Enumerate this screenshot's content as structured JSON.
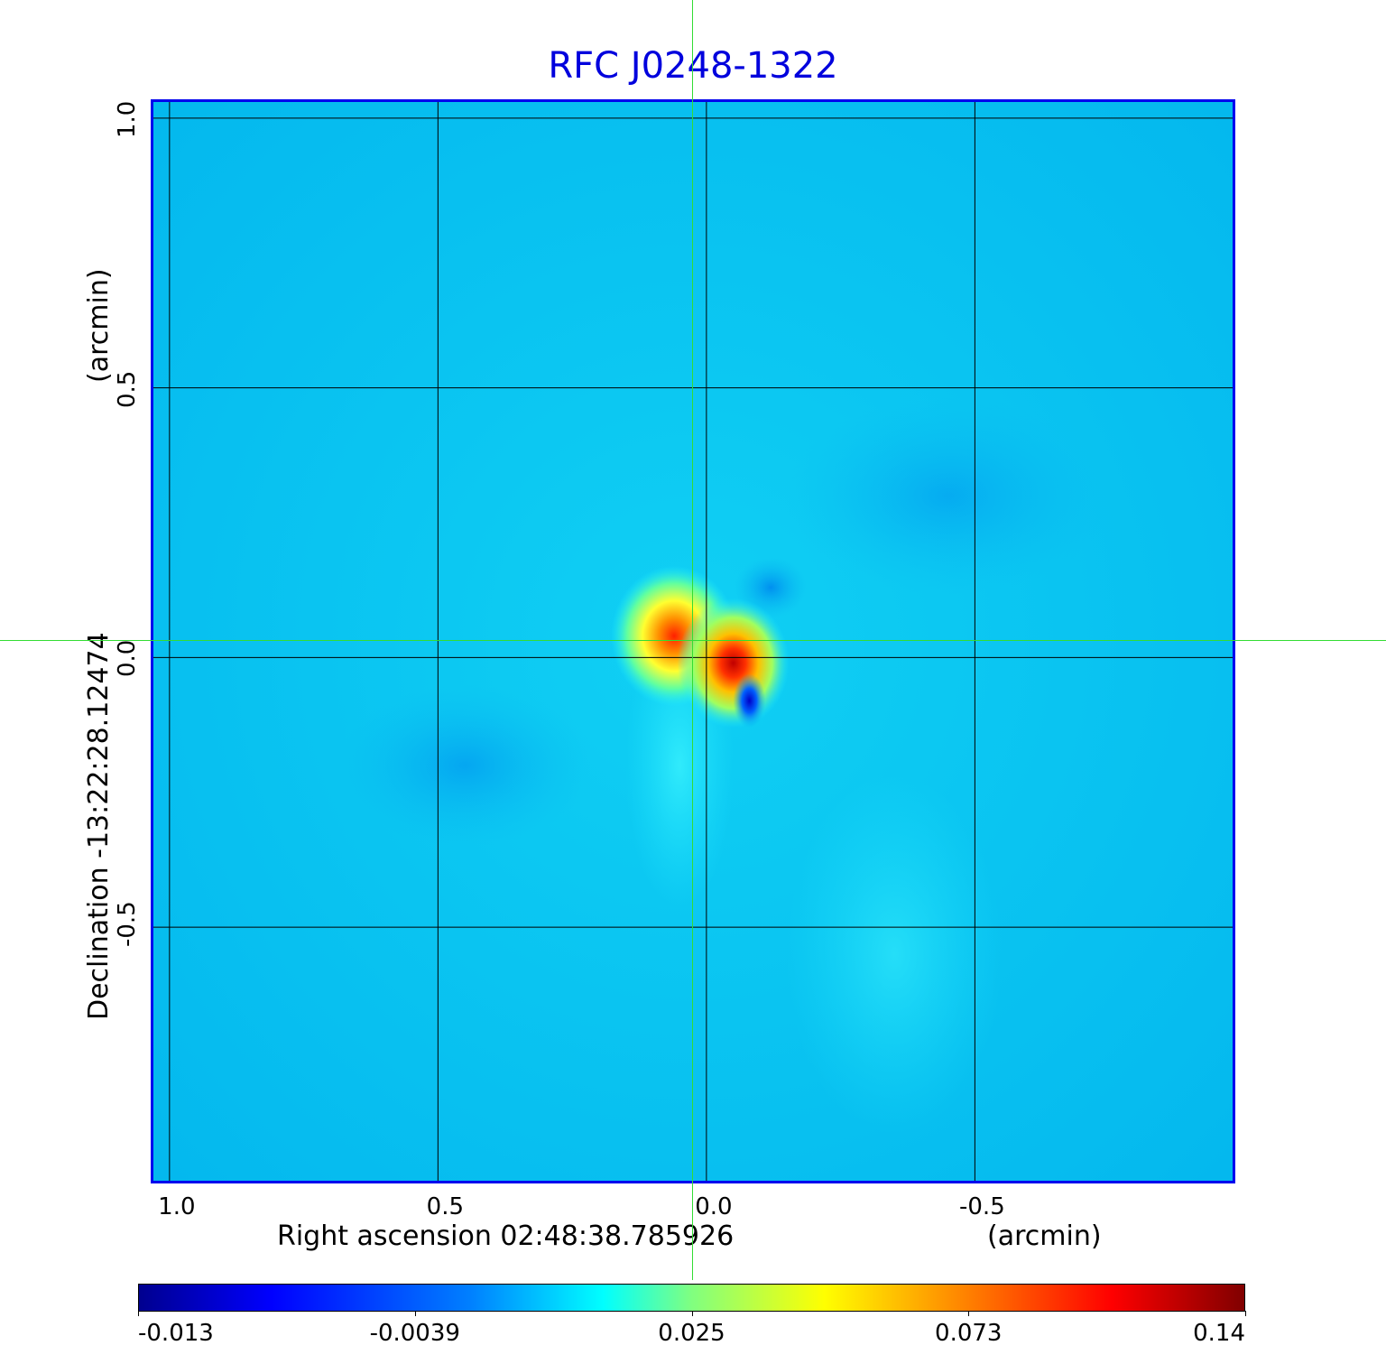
{
  "chart_data": {
    "type": "heatmap",
    "title": "RFC J0248-1322",
    "xlabel": "Right ascension  02:48:38.785926",
    "xlabel_unit": "(arcmin)",
    "ylabel": "Declination  -13:22:28.12474",
    "ylabel_unit": "(arcmin)",
    "x_ticks": [
      "1.0",
      "0.5",
      "0.0",
      "-0.5"
    ],
    "y_ticks": [
      "1.0",
      "0.5",
      "0.0",
      "-0.5"
    ],
    "x_tick_values": [
      1.0,
      0.5,
      0.0,
      -0.5
    ],
    "y_tick_values": [
      1.0,
      0.5,
      0.0,
      -0.5
    ],
    "xlim": [
      1.03,
      -0.98
    ],
    "ylim": [
      -0.97,
      1.03
    ],
    "grid": true,
    "colormap": "jet",
    "colorbar_ticks": [
      "-0.013",
      "-0.0039",
      "0.025",
      "0.073",
      "0.14"
    ],
    "colorbar_range": [
      -0.013,
      0.14
    ],
    "crosshair": [
      0.03,
      0.03
    ],
    "features": [
      {
        "x": 0.06,
        "y": 0.04,
        "value": 0.12
      },
      {
        "x": -0.05,
        "y": -0.01,
        "value": 0.14
      },
      {
        "x": -0.08,
        "y": -0.08,
        "value": -0.013
      },
      {
        "x": -0.12,
        "y": 0.13,
        "value": -0.006
      }
    ]
  },
  "colors": {
    "title": "#0000dd",
    "frame": "#0000ee",
    "background": "#08c8f0",
    "crosshair": "#33dd33",
    "grid": "#000000"
  }
}
